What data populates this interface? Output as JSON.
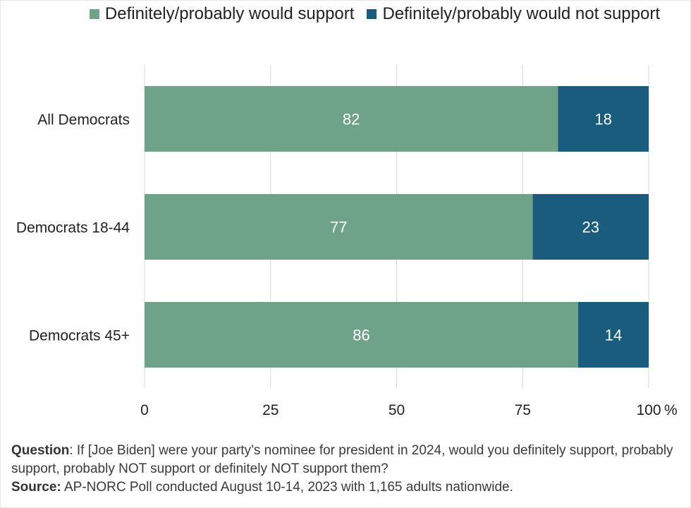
{
  "legend": [
    {
      "label": "Definitely/probably would support",
      "color": "#6fa388"
    },
    {
      "label": "Definitely/probably would not support",
      "color": "#1a5c7e"
    }
  ],
  "chart_data": {
    "type": "bar",
    "orientation": "horizontal",
    "stacked": true,
    "categories": [
      "All Democrats",
      "Democrats 18-44",
      "Democrats 45+"
    ],
    "series": [
      {
        "name": "Definitely/probably would support",
        "values": [
          82,
          77,
          86
        ],
        "color": "#6fa388"
      },
      {
        "name": "Definitely/probably would not support",
        "values": [
          18,
          23,
          14
        ],
        "color": "#1a5c7e"
      }
    ],
    "xlim": [
      0,
      100
    ],
    "xticks": [
      "0",
      "25",
      "50",
      "75",
      "100"
    ],
    "x_unit": "%",
    "grid": true,
    "legend_position": "top-right"
  },
  "footer": {
    "question_label": "Question",
    "question_text": ": If [Joe Biden] were your party’s nominee for president in 2024, would you definitely support, probably support, probably NOT support or definitely NOT support them?",
    "source_label": "Source:",
    "source_text": " AP-NORC Poll conducted August 10-14, 2023 with 1,165 adults nationwide."
  }
}
